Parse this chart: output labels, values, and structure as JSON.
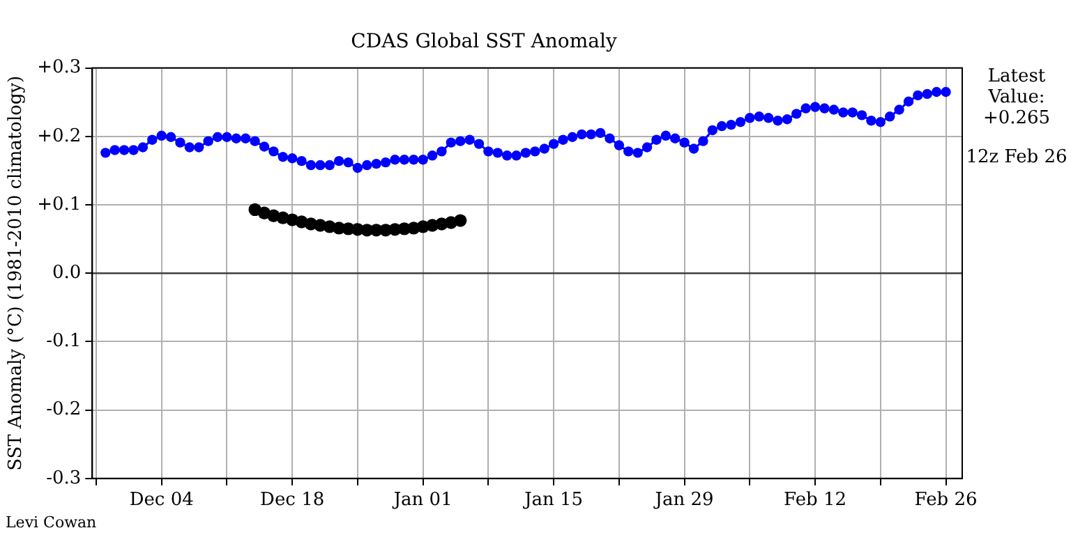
{
  "chart_data": {
    "type": "line",
    "title": "CDAS Global SST Anomaly",
    "ylabel": "SST Anomaly (°C) (1981-2010 climatology)",
    "categories": [
      null,
      null,
      null,
      null,
      null,
      null,
      "Dec 04",
      null,
      null,
      null,
      null,
      null,
      null,
      null,
      null,
      null,
      null,
      null,
      null,
      null,
      "Dec 18",
      null,
      null,
      null,
      null,
      null,
      null,
      null,
      null,
      null,
      null,
      null,
      null,
      null,
      "Jan 01",
      null,
      null,
      null,
      null,
      null,
      null,
      null,
      null,
      null,
      null,
      null,
      null,
      null,
      "Jan 15",
      null,
      null,
      null,
      null,
      null,
      null,
      null,
      null,
      null,
      null,
      null,
      null,
      null,
      "Jan 29",
      null,
      null,
      null,
      null,
      null,
      null,
      null,
      null,
      null,
      null,
      null,
      null,
      null,
      "Feb 12",
      null,
      null,
      null,
      null,
      null,
      null,
      null,
      null,
      null,
      null,
      null,
      null,
      null,
      "Feb 26"
    ],
    "series": [
      {
        "color": "#0000ff",
        "values": [
          0.176,
          0.18,
          0.18,
          0.18,
          0.184,
          0.195,
          0.201,
          0.199,
          0.191,
          0.184,
          0.184,
          0.193,
          0.199,
          0.199,
          0.197,
          0.197,
          0.193,
          0.185,
          0.178,
          0.17,
          0.168,
          0.164,
          0.158,
          0.158,
          0.158,
          0.164,
          0.162,
          0.154,
          0.158,
          0.16,
          0.162,
          0.166,
          0.166,
          0.166,
          0.166,
          0.172,
          0.178,
          0.191,
          0.193,
          0.195,
          0.189,
          0.178,
          0.176,
          0.172,
          0.172,
          0.176,
          0.178,
          0.182,
          0.189,
          0.195,
          0.199,
          0.203,
          0.203,
          0.205,
          0.197,
          0.187,
          0.178,
          0.176,
          0.184,
          0.195,
          0.201,
          0.197,
          0.191,
          0.182,
          0.193,
          0.209,
          0.215,
          0.217,
          0.221,
          0.227,
          0.229,
          0.227,
          0.223,
          0.225,
          0.233,
          0.241,
          0.243,
          0.241,
          0.239,
          0.235,
          0.235,
          0.231,
          0.223,
          0.221,
          0.229,
          0.239,
          0.251,
          0.26,
          0.262,
          0.265,
          0.265
        ]
      },
      {
        "type": "scatter",
        "color": "#000000",
        "values": [
          null,
          null,
          null,
          null,
          null,
          null,
          null,
          null,
          null,
          null,
          null,
          null,
          null,
          null,
          null,
          null,
          0.093,
          0.088,
          0.084,
          0.081,
          0.078,
          0.075,
          0.072,
          0.07,
          0.068,
          0.066,
          0.065,
          0.064,
          0.063,
          0.063,
          0.063,
          0.064,
          0.065,
          0.066,
          0.068,
          0.07,
          0.072,
          0.074,
          0.077,
          null,
          null,
          null,
          null,
          null,
          null,
          null,
          null,
          null,
          null,
          null,
          null,
          null,
          null,
          null,
          null,
          null,
          null,
          null,
          null,
          null,
          null,
          null,
          null,
          null,
          null,
          null,
          null,
          null,
          null,
          null,
          null,
          null,
          null,
          null,
          null,
          null,
          null,
          null,
          null,
          null,
          null,
          null,
          null,
          null,
          null,
          null,
          null,
          null,
          null,
          null,
          null
        ]
      }
    ],
    "ylim": [
      -0.3,
      0.3
    ],
    "yticks": [
      {
        "value": -0.3,
        "label": "-0.3"
      },
      {
        "value": -0.2,
        "label": "-0.2"
      },
      {
        "value": -0.1,
        "label": "-0.1"
      },
      {
        "value": 0,
        "label": "0.0"
      },
      {
        "value": 0.1,
        "label": "+0.1"
      },
      {
        "value": 0.2,
        "label": "+0.2"
      },
      {
        "value": 0.3,
        "label": "+0.3"
      }
    ],
    "ref_lines": [
      {
        "axis": "y",
        "value": 0,
        "color": "#404040"
      }
    ],
    "annotations": [
      "Latest\nValue:\n+0.265",
      "12z Feb 26",
      "Levi Cowan"
    ],
    "grid": true,
    "legend": false,
    "marker": "circle",
    "line_style": "solid"
  }
}
